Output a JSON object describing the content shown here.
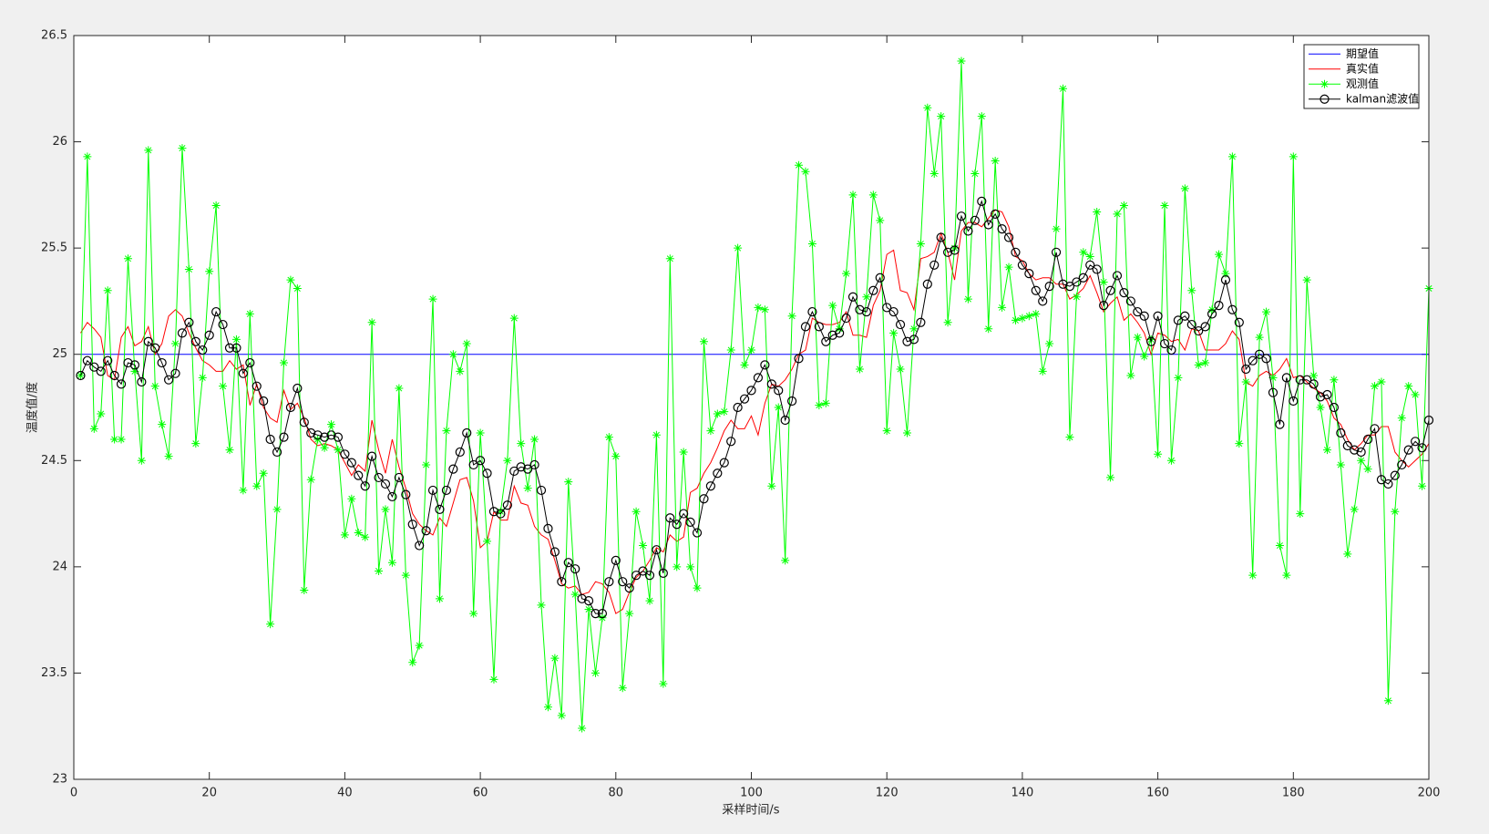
{
  "chart_data": {
    "type": "line",
    "x_label": "采样时间/s",
    "y_label": "温度值/度",
    "xlim": [
      0,
      200
    ],
    "xticks": [
      0,
      20,
      40,
      60,
      80,
      100,
      120,
      140,
      160,
      180,
      200
    ],
    "ylim": [
      23,
      26.5
    ],
    "yticks": [
      23,
      23.5,
      24,
      24.5,
      25,
      25.5,
      26,
      26.5
    ],
    "legend": "upper right",
    "x": [
      1,
      2,
      3,
      4,
      5,
      6,
      7,
      8,
      9,
      10,
      11,
      12,
      13,
      14,
      15,
      16,
      17,
      18,
      19,
      20,
      21,
      22,
      23,
      24,
      25,
      26,
      27,
      28,
      29,
      30,
      31,
      32,
      33,
      34,
      35,
      36,
      37,
      38,
      39,
      40,
      41,
      42,
      43,
      44,
      45,
      46,
      47,
      48,
      49,
      50,
      51,
      52,
      53,
      54,
      55,
      56,
      57,
      58,
      59,
      60,
      61,
      62,
      63,
      64,
      65,
      66,
      67,
      68,
      69,
      70,
      71,
      72,
      73,
      74,
      75,
      76,
      77,
      78,
      79,
      80,
      81,
      82,
      83,
      84,
      85,
      86,
      87,
      88,
      89,
      90,
      91,
      92,
      93,
      94,
      95,
      96,
      97,
      98,
      99,
      100,
      101,
      102,
      103,
      104,
      105,
      106,
      107,
      108,
      109,
      110,
      111,
      112,
      113,
      114,
      115,
      116,
      117,
      118,
      119,
      120,
      121,
      122,
      123,
      124,
      125,
      126,
      127,
      128,
      129,
      130,
      131,
      132,
      133,
      134,
      135,
      136,
      137,
      138,
      139,
      140,
      141,
      142,
      143,
      144,
      145,
      146,
      147,
      148,
      149,
      150,
      151,
      152,
      153,
      154,
      155,
      156,
      157,
      158,
      159,
      160,
      161,
      162,
      163,
      164,
      165,
      166,
      167,
      168,
      169,
      170,
      171,
      172,
      173,
      174,
      175,
      176,
      177,
      178,
      179,
      180,
      181,
      182,
      183,
      184,
      185,
      186,
      187,
      188,
      189,
      190,
      191,
      192,
      193,
      194,
      195,
      196,
      197,
      198,
      199,
      200
    ],
    "series": [
      {
        "name": "期望值",
        "color": "#0000ff",
        "values": [
          25,
          25,
          25,
          25,
          25,
          25,
          25,
          25,
          25,
          25,
          25,
          25,
          25,
          25,
          25,
          25,
          25,
          25,
          25,
          25,
          25,
          25,
          25,
          25,
          25,
          25,
          25,
          25,
          25,
          25,
          25,
          25,
          25,
          25,
          25,
          25,
          25,
          25,
          25,
          25,
          25,
          25,
          25,
          25,
          25,
          25,
          25,
          25,
          25,
          25,
          25,
          25,
          25,
          25,
          25,
          25,
          25,
          25,
          25,
          25,
          25,
          25,
          25,
          25,
          25,
          25,
          25,
          25,
          25,
          25,
          25,
          25,
          25,
          25,
          25,
          25,
          25,
          25,
          25,
          25,
          25,
          25,
          25,
          25,
          25,
          25,
          25,
          25,
          25,
          25,
          25,
          25,
          25,
          25,
          25,
          25,
          25,
          25,
          25,
          25,
          25,
          25,
          25,
          25,
          25,
          25,
          25,
          25,
          25,
          25,
          25,
          25,
          25,
          25,
          25,
          25,
          25,
          25,
          25,
          25,
          25,
          25,
          25,
          25,
          25,
          25,
          25,
          25,
          25,
          25,
          25,
          25,
          25,
          25,
          25,
          25,
          25,
          25,
          25,
          25,
          25,
          25,
          25,
          25,
          25,
          25,
          25,
          25,
          25,
          25,
          25,
          25,
          25,
          25,
          25,
          25,
          25,
          25,
          25,
          25,
          25,
          25,
          25,
          25,
          25,
          25,
          25,
          25,
          25,
          25,
          25,
          25,
          25,
          25,
          25,
          25,
          25,
          25,
          25,
          25,
          25,
          25,
          25,
          25,
          25,
          25,
          25,
          25,
          25,
          25,
          25,
          25,
          25,
          25,
          25,
          25,
          25,
          25,
          25,
          25
        ]
      },
      {
        "name": "真实值",
        "color": "#ff0000",
        "values": [
          25.1,
          25.15,
          25.12,
          25.08,
          24.9,
          24.88,
          25.08,
          25.13,
          25.04,
          25.06,
          25.13,
          25.0,
          25.05,
          25.18,
          25.21,
          25.18,
          25.1,
          25.03,
          24.97,
          24.95,
          24.92,
          24.92,
          24.97,
          24.93,
          24.95,
          24.76,
          24.86,
          24.75,
          24.7,
          24.68,
          24.83,
          24.74,
          24.77,
          24.7,
          24.6,
          24.57,
          24.58,
          24.57,
          24.55,
          24.49,
          24.43,
          24.48,
          24.45,
          24.69,
          24.55,
          24.44,
          24.6,
          24.47,
          24.37,
          24.25,
          24.2,
          24.17,
          24.15,
          24.23,
          24.19,
          24.3,
          24.41,
          24.42,
          24.31,
          24.09,
          24.12,
          24.26,
          24.22,
          24.22,
          24.38,
          24.3,
          24.29,
          24.19,
          24.15,
          24.13,
          24.03,
          23.92,
          23.9,
          23.91,
          23.87,
          23.88,
          23.93,
          23.92,
          23.88,
          23.78,
          23.8,
          23.88,
          23.95,
          23.98,
          24.03,
          24.09,
          24.07,
          24.15,
          24.12,
          24.14,
          24.35,
          24.37,
          24.44,
          24.49,
          24.56,
          24.64,
          24.69,
          24.65,
          24.65,
          24.71,
          24.62,
          24.77,
          24.86,
          24.85,
          24.88,
          24.93,
          25.0,
          25.02,
          25.17,
          25.15,
          25.14,
          25.14,
          25.15,
          25.2,
          25.09,
          25.09,
          25.08,
          25.23,
          25.3,
          25.47,
          25.49,
          25.3,
          25.29,
          25.21,
          25.45,
          25.46,
          25.48,
          25.57,
          25.48,
          25.35,
          25.58,
          25.62,
          25.62,
          25.6,
          25.64,
          25.68,
          25.67,
          25.6,
          25.46,
          25.44,
          25.38,
          25.35,
          25.36,
          25.36,
          25.33,
          25.33,
          25.26,
          25.28,
          25.31,
          25.37,
          25.29,
          25.2,
          25.24,
          25.27,
          25.16,
          25.19,
          25.15,
          25.1,
          25.0,
          25.1,
          25.09,
          25.06,
          25.07,
          25.02,
          25.12,
          25.11,
          25.02,
          25.02,
          25.02,
          25.05,
          25.11,
          25.07,
          24.87,
          24.85,
          24.9,
          24.92,
          24.9,
          24.93,
          24.98,
          24.89,
          24.9,
          24.87,
          24.84,
          24.82,
          24.78,
          24.7,
          24.67,
          24.6,
          24.55,
          24.58,
          24.62,
          24.62,
          24.66,
          24.66,
          24.54,
          24.5,
          24.47,
          24.5,
          24.53,
          24.58
        ]
      },
      {
        "name": "观测值",
        "color": "#00ff00",
        "marker": "*",
        "values": [
          24.9,
          25.93,
          24.65,
          24.72,
          25.3,
          24.6,
          24.6,
          25.45,
          24.92,
          24.5,
          25.96,
          24.85,
          24.67,
          24.52,
          25.05,
          25.97,
          25.4,
          24.58,
          24.89,
          25.39,
          25.7,
          24.85,
          24.55,
          25.07,
          24.36,
          25.19,
          24.38,
          24.44,
          23.73,
          24.27,
          24.96,
          25.35,
          25.31,
          23.89,
          24.41,
          24.6,
          24.56,
          24.67,
          24.55,
          24.15,
          24.32,
          24.16,
          24.14,
          25.15,
          23.98,
          24.27,
          24.02,
          24.84,
          23.96,
          23.55,
          23.63,
          24.48,
          25.26,
          23.85,
          24.64,
          25.0,
          24.92,
          25.05,
          23.78,
          24.63,
          24.12,
          23.47,
          24.26,
          24.5,
          25.17,
          24.58,
          24.37,
          24.6,
          23.82,
          23.34,
          23.57,
          23.3,
          24.4,
          23.87,
          23.24,
          23.8,
          23.5,
          23.76,
          24.61,
          24.52,
          23.43,
          23.78,
          24.26,
          24.1,
          23.84,
          24.62,
          23.45,
          25.45,
          24.0,
          24.54,
          24.0,
          23.9,
          25.06,
          24.64,
          24.72,
          24.73,
          25.02,
          25.5,
          24.95,
          25.02,
          25.22,
          25.21,
          24.38,
          24.75,
          24.03,
          25.18,
          25.89,
          25.86,
          25.52,
          24.76,
          24.77,
          25.23,
          25.12,
          25.38,
          25.75,
          24.93,
          25.27,
          25.75,
          25.63,
          24.64,
          25.1,
          24.93,
          24.63,
          25.12,
          25.52,
          26.16,
          25.85,
          26.12,
          25.15,
          25.5,
          26.38,
          25.26,
          25.85,
          26.12,
          25.12,
          25.91,
          25.22,
          25.41,
          25.16,
          25.17,
          25.18,
          25.19,
          24.92,
          25.05,
          25.59,
          26.25,
          24.61,
          25.27,
          25.48,
          25.46,
          25.67,
          25.34,
          24.42,
          25.66,
          25.7,
          24.9,
          25.08,
          24.99,
          25.07,
          24.53,
          25.7,
          24.5,
          24.89,
          25.78,
          25.3,
          24.95,
          24.96,
          25.21,
          25.47,
          25.38,
          25.93,
          24.58,
          24.87,
          23.96,
          25.08,
          25.2,
          24.89,
          24.1,
          23.96,
          25.93,
          24.25,
          25.35,
          24.9,
          24.75,
          24.55,
          24.88,
          24.48,
          24.06,
          24.27,
          24.5,
          24.46,
          24.85,
          24.87,
          23.37,
          24.26,
          24.7,
          24.85,
          24.81,
          24.38,
          25.31
        ]
      },
      {
        "name": "kalman滤波值",
        "color": "#000000",
        "marker": "o",
        "values": [
          24.9,
          24.97,
          24.94,
          24.92,
          24.97,
          24.9,
          24.86,
          24.96,
          24.95,
          24.87,
          25.06,
          25.03,
          24.96,
          24.88,
          24.91,
          25.1,
          25.15,
          25.06,
          25.02,
          25.09,
          25.2,
          25.14,
          25.03,
          25.03,
          24.91,
          24.96,
          24.85,
          24.78,
          24.6,
          24.54,
          24.61,
          24.75,
          24.84,
          24.68,
          24.63,
          24.62,
          24.61,
          24.62,
          24.61,
          24.53,
          24.49,
          24.43,
          24.38,
          24.52,
          24.42,
          24.39,
          24.33,
          24.42,
          24.34,
          24.2,
          24.1,
          24.17,
          24.36,
          24.27,
          24.36,
          24.46,
          24.54,
          24.63,
          24.48,
          24.5,
          24.44,
          24.26,
          24.25,
          24.29,
          24.45,
          24.47,
          24.46,
          24.48,
          24.36,
          24.18,
          24.07,
          23.93,
          24.02,
          23.99,
          23.85,
          23.84,
          23.78,
          23.78,
          23.93,
          24.03,
          23.93,
          23.9,
          23.96,
          23.98,
          23.96,
          24.08,
          23.97,
          24.23,
          24.2,
          24.25,
          24.21,
          24.16,
          24.32,
          24.38,
          24.44,
          24.49,
          24.59,
          24.75,
          24.79,
          24.83,
          24.89,
          24.95,
          24.86,
          24.83,
          24.69,
          24.78,
          24.98,
          25.13,
          25.2,
          25.13,
          25.06,
          25.09,
          25.1,
          25.17,
          25.27,
          25.21,
          25.2,
          25.3,
          25.36,
          25.22,
          25.2,
          25.14,
          25.06,
          25.07,
          25.15,
          25.33,
          25.42,
          25.55,
          25.48,
          25.49,
          25.65,
          25.58,
          25.63,
          25.72,
          25.61,
          25.66,
          25.59,
          25.55,
          25.48,
          25.42,
          25.38,
          25.3,
          25.25,
          25.32,
          25.48,
          25.33,
          25.32,
          25.34,
          25.36,
          25.42,
          25.4,
          25.23,
          25.3,
          25.37,
          25.29,
          25.25,
          25.2,
          25.18,
          25.06,
          25.18,
          25.05,
          25.02,
          25.16,
          25.18,
          25.14,
          25.11,
          25.13,
          25.19,
          25.23,
          25.35,
          25.21,
          25.15,
          24.93,
          24.97,
          25.0,
          24.98,
          24.82,
          24.67,
          24.89,
          24.78,
          24.88,
          24.88,
          24.86,
          24.8,
          24.81,
          24.75,
          24.63,
          24.57,
          24.55,
          24.54,
          24.6,
          24.65,
          24.41,
          24.39,
          24.43,
          24.48,
          24.55,
          24.59,
          24.56,
          24.69
        ]
      }
    ]
  }
}
